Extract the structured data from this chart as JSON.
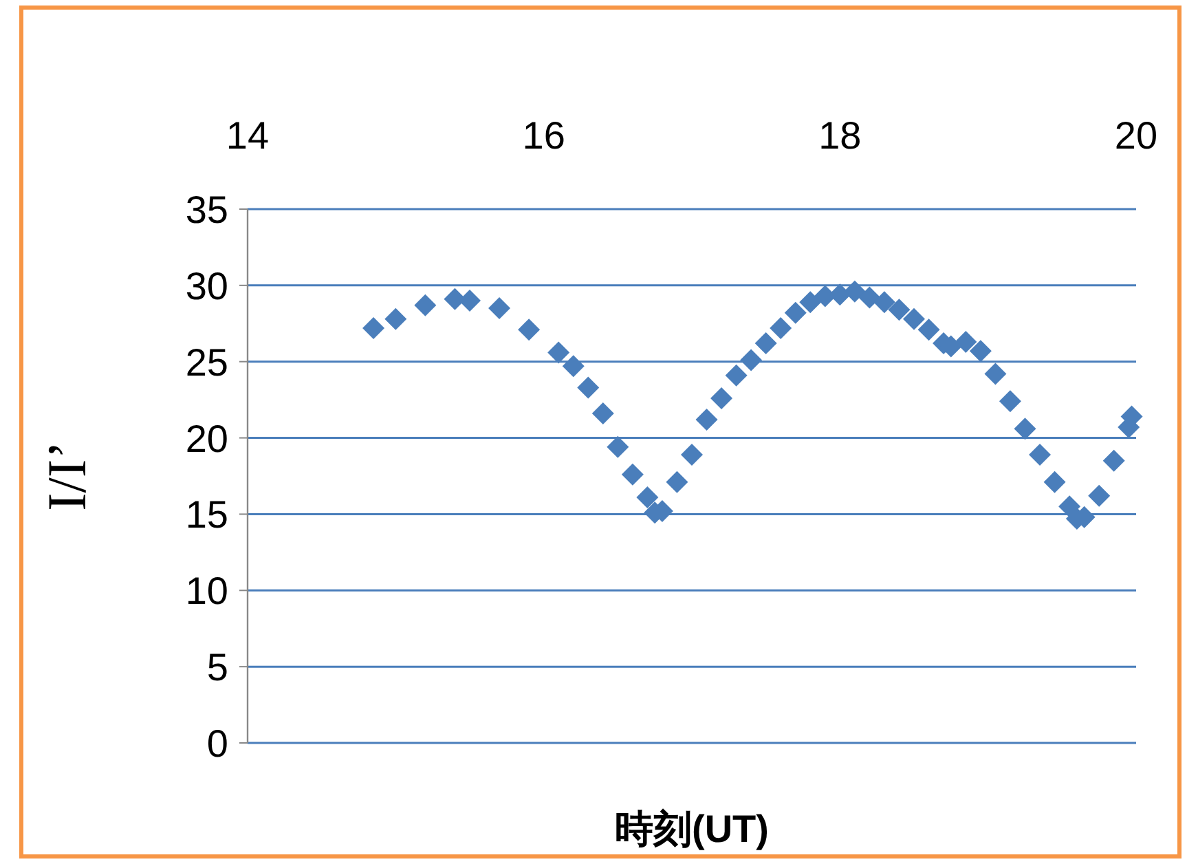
{
  "chart_data": {
    "type": "scatter",
    "xlabel": "時刻(UT)",
    "ylabel": "I/I’",
    "xlim": [
      14,
      20
    ],
    "xticks": [
      14,
      16,
      18,
      20
    ],
    "ylim": [
      0,
      35
    ],
    "yticks": [
      0,
      5,
      10,
      15,
      20,
      25,
      30,
      35
    ],
    "grid": "y",
    "marker": "diamond",
    "series": [
      {
        "color": "#4a7ebb",
        "x": [
          14.85,
          15.0,
          15.2,
          15.4,
          15.5,
          15.7,
          15.9,
          16.1,
          16.2,
          16.3,
          16.4,
          16.5,
          16.6,
          16.7,
          16.75,
          16.8,
          16.9,
          17.0,
          17.1,
          17.2,
          17.3,
          17.4,
          17.5,
          17.6,
          17.7,
          17.8,
          17.9,
          18.0,
          18.1,
          18.2,
          18.3,
          18.4,
          18.5,
          18.6,
          18.7,
          18.75,
          18.85,
          18.95,
          19.05,
          19.15,
          19.25,
          19.35,
          19.45,
          19.55,
          19.6,
          19.65,
          19.75,
          19.85,
          19.95,
          19.97
        ],
        "values": [
          27.2,
          27.8,
          28.7,
          29.1,
          29.0,
          28.5,
          27.1,
          25.6,
          24.7,
          23.3,
          21.6,
          19.4,
          17.6,
          16.1,
          15.1,
          15.2,
          17.1,
          18.9,
          21.2,
          22.6,
          24.1,
          25.1,
          26.2,
          27.2,
          28.2,
          28.9,
          29.3,
          29.4,
          29.6,
          29.2,
          28.9,
          28.4,
          27.8,
          27.1,
          26.2,
          26.0,
          26.3,
          25.7,
          24.2,
          22.4,
          20.6,
          18.9,
          17.1,
          15.5,
          14.7,
          14.8,
          16.2,
          18.5,
          20.7,
          21.4
        ]
      }
    ]
  }
}
